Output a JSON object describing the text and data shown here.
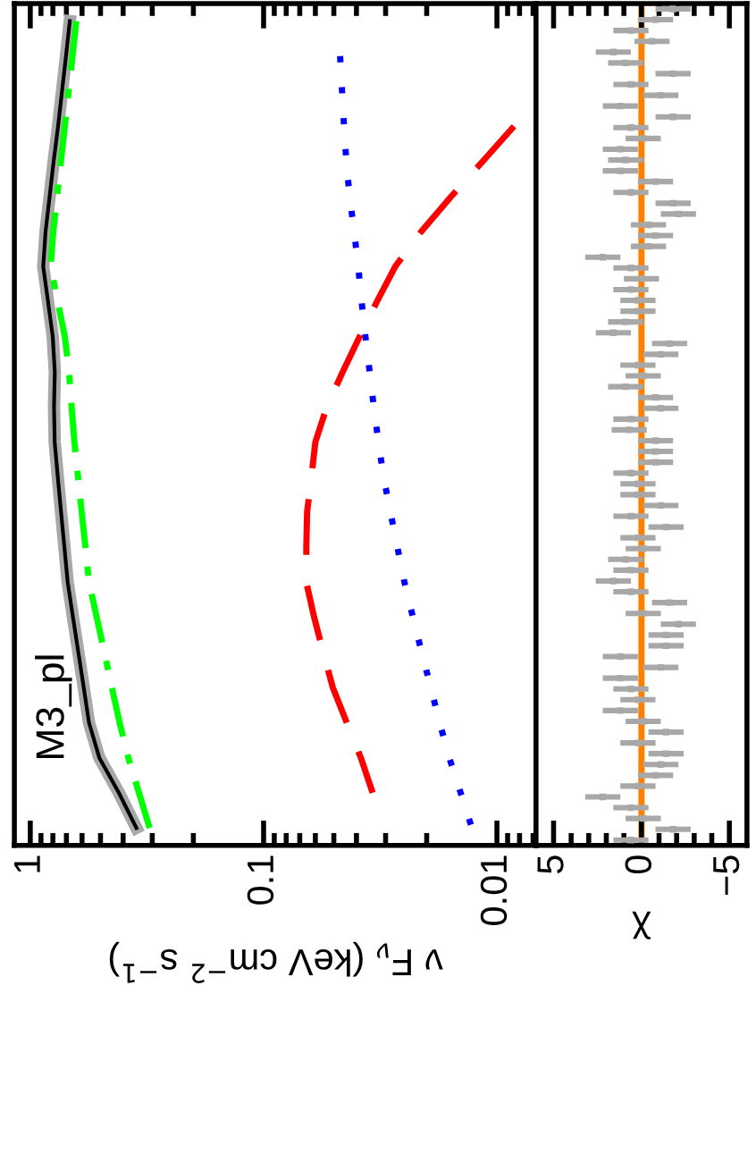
{
  "chart_data": [
    {
      "type": "line",
      "orientation": "horizontal",
      "log": "x",
      "xlabel": "ν F$_{ν}$ (keV cm$^{−2}$ s$^{−1}$)",
      "annotations": [
        "M3_pl"
      ],
      "tick_labels": "x",
      "xlim": [
        1.17,
        0.0068
      ],
      "xticks": [
        1,
        0.1,
        0.01,
        {
          "value": 0.9,
          "label": null
        },
        {
          "value": 0.8,
          "label": null
        },
        {
          "value": 0.7,
          "label": null
        },
        {
          "value": 0.6,
          "label": null
        },
        {
          "value": 0.5,
          "label": null
        },
        {
          "value": 0.4,
          "label": null
        },
        {
          "value": 0.3,
          "label": null
        },
        {
          "value": 0.2,
          "label": null
        },
        {
          "value": 0.09,
          "label": null
        },
        {
          "value": 0.08,
          "label": null
        },
        {
          "value": 0.07,
          "label": null
        },
        {
          "value": 0.06,
          "label": null
        },
        {
          "value": 0.05,
          "label": null
        },
        {
          "value": 0.04,
          "label": null
        },
        {
          "value": 0.03,
          "label": null
        },
        {
          "value": 0.02,
          "label": null
        },
        {
          "value": 0.009,
          "label": null
        },
        {
          "value": 0.008,
          "label": null
        },
        {
          "value": 0.007,
          "label": null
        }
      ],
      "categories": [
        null,
        null,
        null,
        null,
        null,
        null,
        null,
        null,
        null,
        null,
        null,
        null,
        null,
        null,
        null,
        null,
        null,
        null,
        null,
        null,
        null,
        null,
        null,
        null
      ],
      "series": [
        {
          "color": "#a8a8a8",
          "line_style": "solid",
          "values": [
            0.677,
            0.703,
            0.731,
            0.76,
            0.794,
            0.826,
            0.86,
            0.88,
            0.839,
            0.801,
            0.785,
            0.791,
            0.786,
            0.762,
            0.738,
            0.714,
            0.691,
            0.656,
            0.622,
            0.59,
            0.56,
            0.506,
            0.417,
            0.351
          ]
        },
        {
          "color": "#000000",
          "line_style": "solid",
          "values": [
            0.677,
            0.703,
            0.731,
            0.76,
            0.794,
            0.826,
            0.86,
            0.88,
            0.839,
            0.801,
            0.785,
            0.791,
            0.786,
            0.762,
            0.738,
            0.714,
            0.691,
            0.656,
            0.622,
            0.59,
            0.56,
            0.506,
            0.417,
            0.351
          ]
        },
        {
          "color": "#00ff00",
          "line_style": "dashdot",
          "values": [
            0.635,
            0.659,
            0.685,
            0.711,
            0.739,
            0.767,
            0.797,
            0.818,
            0.763,
            0.711,
            0.682,
            0.665,
            0.647,
            0.624,
            0.602,
            0.58,
            0.56,
            0.519,
            0.481,
            0.447,
            0.414,
            0.38,
            0.342,
            0.308
          ]
        },
        {
          "color": "#0000ff",
          "line_style": "dotted",
          "values": [
            null,
            0.047,
            0.0461,
            0.0452,
            0.0442,
            0.0428,
            0.0409,
            0.0393,
            0.038,
            0.0366,
            0.0351,
            0.0337,
            0.0322,
            0.0306,
            0.0286,
            0.0267,
            0.0249,
            0.0229,
            0.021,
            0.0192,
            0.0176,
            0.016,
            0.0143,
            0.0128
          ]
        },
        {
          "color": "#ff0000",
          "line_style": "dashed",
          "values": [
            null,
            null,
            null,
            0.00845,
            0.0115,
            0.0157,
            0.0211,
            0.0273,
            0.0327,
            0.0388,
            0.0458,
            0.0536,
            0.06,
            0.0624,
            0.0651,
            0.0656,
            0.0656,
            0.0607,
            0.0555,
            0.0505,
            0.044,
            0.0383,
            0.0341,
            null
          ]
        }
      ]
    },
    {
      "type": "scatter",
      "orientation": "horizontal",
      "xlabel": "χ",
      "tick_labels": "x",
      "marker": "square",
      "xlim": [
        6,
        -6
      ],
      "xticks": [
        5,
        0,
        {
          "value": -5,
          "label": "−5"
        },
        {
          "value": 4,
          "label": null
        },
        {
          "value": 3,
          "label": null
        },
        {
          "value": 2,
          "label": null
        },
        {
          "value": 1,
          "label": null
        },
        {
          "value": -1,
          "label": null
        },
        {
          "value": -2,
          "label": null
        },
        {
          "value": -3,
          "label": null
        },
        {
          "value": -4,
          "label": null
        }
      ],
      "categories": [
        null,
        null,
        null,
        null,
        null,
        null,
        null,
        null,
        null,
        null,
        null,
        null,
        null,
        null,
        null,
        null,
        null,
        null,
        null,
        null,
        null,
        null,
        null,
        null,
        null,
        null,
        null,
        null,
        null,
        null,
        null,
        null,
        null,
        null,
        null,
        null,
        null,
        null,
        null,
        null,
        null,
        null,
        null,
        null,
        null,
        null,
        null,
        null,
        null,
        null,
        null,
        null,
        null,
        null,
        null,
        null,
        null,
        null,
        null,
        null,
        null,
        null,
        null,
        null,
        null,
        null,
        null,
        null,
        null,
        null,
        null,
        null,
        null,
        null,
        null,
        null,
        null,
        null
      ],
      "ref_lines": [
        {
          "axis": "x",
          "value": 0,
          "color": "#ff8000"
        }
      ],
      "series": [
        {
          "color": "#a8a8a8",
          "values": [
            -1.8,
            -0.8,
            0.6,
            -0.6,
            1.6,
            0.9,
            -1.8,
            0.6,
            -1.1,
            1.2,
            -1.8,
            0.6,
            -0.1,
            1.2,
            0.9,
            1.2,
            -0.8,
            0.6,
            -1.8,
            -2.1,
            -0.4,
            -0.8,
            -0.4,
            2.2,
            0.6,
            0,
            0.6,
            0.2,
            0.2,
            0.9,
            1.6,
            -1.6,
            -1.1,
            0.2,
            -0.1,
            0.9,
            -0.8,
            -1.1,
            0.6,
            0.7,
            -0.8,
            -0.8,
            -0.8,
            0.6,
            0.2,
            0.2,
            -1.1,
            0.6,
            -1.4,
            0.2,
            -0.1,
            0.9,
            0.6,
            1.6,
            0.6,
            -1.6,
            -0.1,
            -2.1,
            -1.4,
            -1.4,
            1.2,
            -1.1,
            1.2,
            0.6,
            0.2,
            1.2,
            -0.1,
            -1.4,
            0.2,
            -1.4,
            -1.1,
            -0.8,
            0.2,
            2.2,
            0.6,
            -0.1,
            -1.8,
            0.6
          ],
          "errors": [
            1,
            1,
            1,
            1,
            1,
            1,
            1,
            1,
            1,
            1,
            1,
            1,
            1,
            1,
            1,
            1,
            1,
            1,
            1,
            1,
            1,
            1,
            1,
            1,
            1,
            1,
            1,
            1,
            1,
            1,
            1,
            1,
            1,
            1,
            1,
            1,
            1,
            1,
            1,
            1,
            1,
            1,
            1,
            1,
            1,
            1,
            1,
            1,
            1,
            1,
            1,
            1,
            1,
            1,
            1,
            1,
            1,
            1,
            1,
            1,
            1,
            1,
            1,
            1,
            1,
            1,
            1,
            1,
            1,
            1,
            1,
            1,
            1,
            1,
            1,
            1,
            1,
            1
          ]
        }
      ]
    }
  ]
}
